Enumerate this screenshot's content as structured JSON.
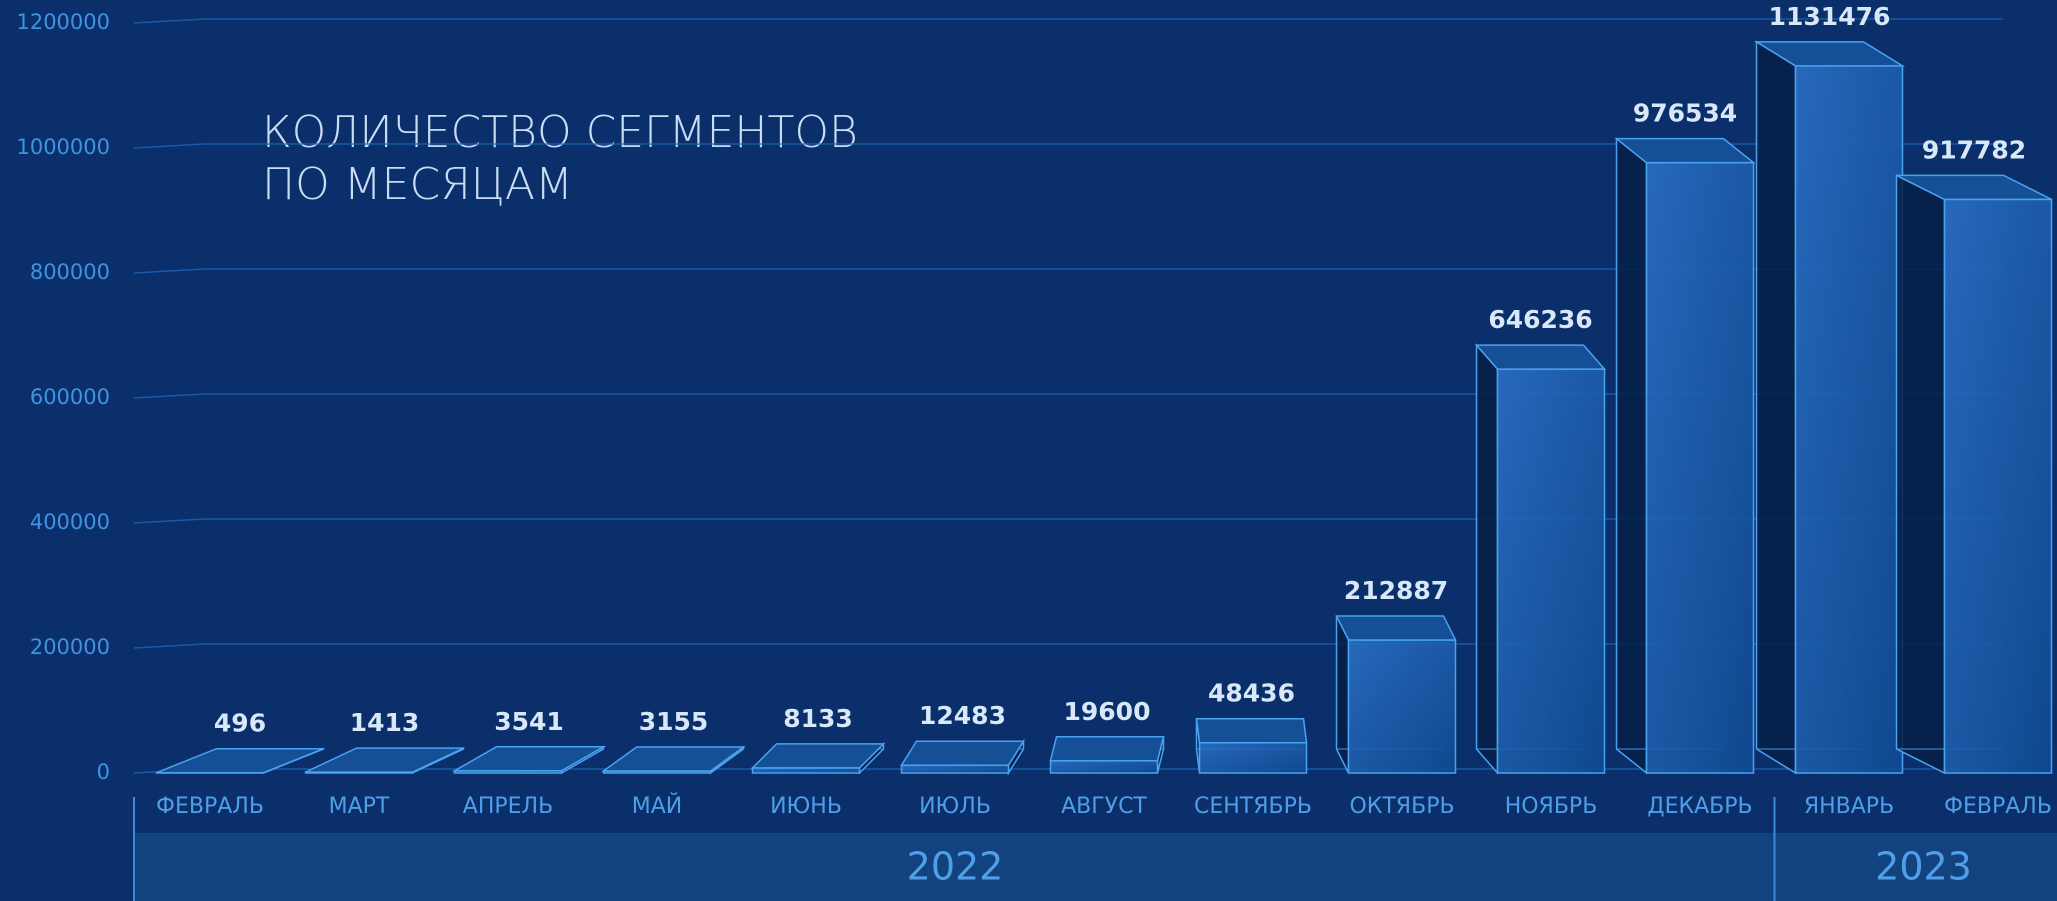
{
  "chart_data": {
    "type": "bar3d",
    "title_lines": [
      "КОЛИЧЕСТВО СЕГМЕНТОВ",
      "ПО МЕСЯЦАМ"
    ],
    "categories": [
      "ФЕВРАЛЬ",
      "МАРТ",
      "АПРЕЛЬ",
      "МАЙ",
      "ИЮНЬ",
      "ИЮЛЬ",
      "АВГУСТ",
      "СЕНТЯБРЬ",
      "ОКТЯБРЬ",
      "НОЯБРЬ",
      "ДЕКАБРЬ",
      "ЯНВАРЬ",
      "ФЕВРАЛЬ"
    ],
    "values": [
      496,
      1413,
      3541,
      3155,
      8133,
      12483,
      19600,
      48436,
      212887,
      646236,
      976534,
      1131476,
      917782
    ],
    "groups": [
      {
        "label": "2022",
        "size": 11
      },
      {
        "label": "2023",
        "size": 2
      }
    ],
    "color": "#1a5cae",
    "ylim": [
      0,
      1200000
    ],
    "yticks": [
      0,
      200000,
      400000,
      600000,
      800000,
      1000000,
      1200000
    ],
    "grid": true
  }
}
